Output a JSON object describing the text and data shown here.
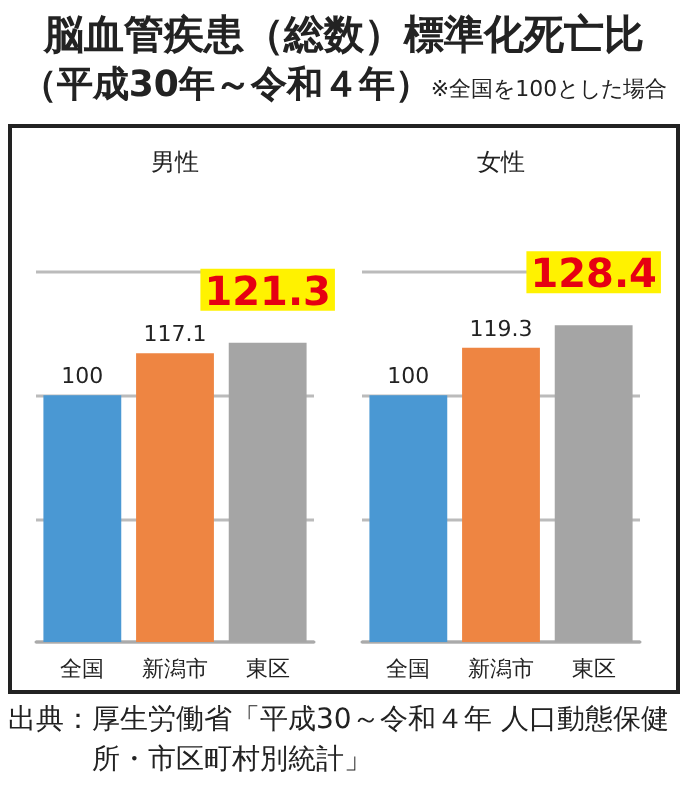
{
  "chart_data": [
    {
      "type": "other",
      "title": "脳血管疾患（総数）標準化死亡比",
      "subtitle": "（平成30年～令和４年）",
      "annotations": [
        "※全国を100とした場合",
        "出典：厚生労働省「平成30～令和４年 人口動態保健所・市区町村別統計」"
      ]
    },
    {
      "type": "bar",
      "title": "男性",
      "categories": [
        "全国",
        "新潟市",
        "東区"
      ],
      "values": [
        100,
        117.1,
        121.3
      ],
      "colors": [
        "#4a98d3",
        "#ee8542",
        "#a5a5a5"
      ],
      "ylim": [
        0,
        150
      ],
      "yticks": [
        {
          "value": 0,
          "label": null
        },
        {
          "value": 50,
          "label": null
        },
        {
          "value": 100,
          "label": null
        },
        {
          "value": 150,
          "label": null
        }
      ],
      "grid": "y",
      "tick_labels": "x",
      "data_labels": true
    },
    {
      "type": "bar",
      "title": "女性",
      "categories": [
        "全国",
        "新潟市",
        "東区"
      ],
      "values": [
        100,
        119.3,
        128.4
      ],
      "colors": [
        "#4a98d3",
        "#ee8542",
        "#a5a5a5"
      ],
      "ylim": [
        0,
        150
      ],
      "yticks": [
        {
          "value": 0,
          "label": null
        },
        {
          "value": 50,
          "label": null
        },
        {
          "value": 100,
          "label": null
        },
        {
          "value": 150,
          "label": null
        }
      ],
      "grid": "y",
      "tick_labels": "x",
      "data_labels": true
    }
  ]
}
